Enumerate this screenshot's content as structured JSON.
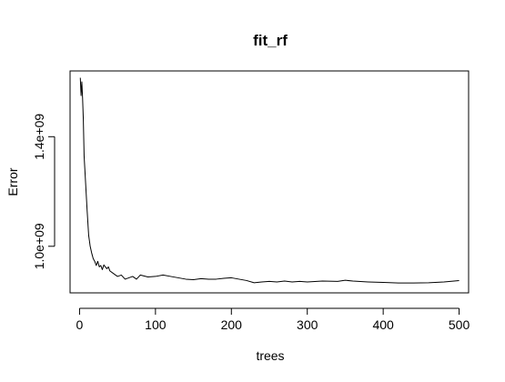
{
  "chart_data": {
    "type": "line",
    "title": "fit_rf",
    "xlabel": "trees",
    "ylabel": "Error",
    "xlim": [
      -12.5,
      512.5
    ],
    "ylim": [
      830000000,
      1640000000
    ],
    "xticks": [
      0,
      100,
      200,
      300,
      400,
      500
    ],
    "xtick_labels": [
      "0",
      "100",
      "200",
      "300",
      "400",
      "500"
    ],
    "yticks": [
      1000000000,
      1400000000
    ],
    "ytick_labels": [
      "1.0e+09",
      "1.4e+09"
    ],
    "grid": false,
    "series": [
      {
        "name": "",
        "color": "#000000",
        "x": [
          1,
          2,
          3,
          4,
          5,
          6,
          7,
          8,
          10,
          12,
          14,
          16,
          18,
          20,
          22,
          24,
          26,
          28,
          30,
          32,
          34,
          36,
          38,
          40,
          45,
          50,
          55,
          60,
          65,
          70,
          75,
          80,
          90,
          100,
          110,
          120,
          130,
          140,
          150,
          160,
          170,
          180,
          190,
          200,
          210,
          220,
          230,
          240,
          250,
          260,
          270,
          280,
          290,
          300,
          320,
          340,
          350,
          360,
          380,
          400,
          420,
          440,
          460,
          480,
          500
        ],
        "y": [
          1615000000,
          1550000000,
          1600000000,
          1540000000,
          1460000000,
          1330000000,
          1280000000,
          1230000000,
          1130000000,
          1040000000,
          1000000000,
          975000000,
          955000000,
          945000000,
          930000000,
          945000000,
          925000000,
          930000000,
          915000000,
          932000000,
          925000000,
          918000000,
          925000000,
          910000000,
          900000000,
          890000000,
          895000000,
          880000000,
          885000000,
          890000000,
          880000000,
          895000000,
          888000000,
          890000000,
          895000000,
          890000000,
          885000000,
          880000000,
          878000000,
          882000000,
          880000000,
          880000000,
          883000000,
          885000000,
          880000000,
          875000000,
          867000000,
          870000000,
          872000000,
          870000000,
          873000000,
          870000000,
          872000000,
          870000000,
          873000000,
          872000000,
          876000000,
          873000000,
          870000000,
          868000000,
          866000000,
          866000000,
          867000000,
          870000000,
          875000000
        ]
      }
    ]
  }
}
